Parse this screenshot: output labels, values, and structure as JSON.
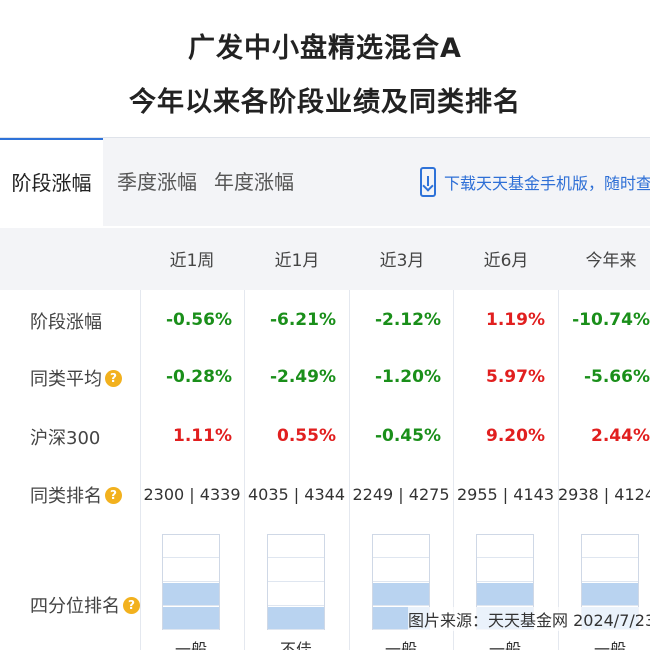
{
  "title": {
    "line1": "广发中小盘精选混合A",
    "line2": "今年以来各阶段业绩及同类排名"
  },
  "tabs": [
    {
      "label": "阶段涨幅",
      "active": true
    },
    {
      "label": "季度涨幅",
      "active": false
    },
    {
      "label": "年度涨幅",
      "active": false
    }
  ],
  "download": {
    "label": "下载天天基金手机版，随时查看"
  },
  "columns": [
    "近1周",
    "近1月",
    "近3月",
    "近6月",
    "今年来"
  ],
  "rows": {
    "stage_change": {
      "label": "阶段涨幅",
      "values": [
        "-0.56%",
        "-6.21%",
        "-2.12%",
        "1.19%",
        "-10.74%"
      ]
    },
    "peer_avg": {
      "label": "同类平均",
      "values": [
        "-0.28%",
        "-2.49%",
        "-1.20%",
        "5.97%",
        "-5.66%"
      ]
    },
    "hs300": {
      "label": "沪深300",
      "values": [
        "1.11%",
        "0.55%",
        "-0.45%",
        "9.20%",
        "2.44%"
      ]
    },
    "peer_rank": {
      "label": "同类排名",
      "values": [
        "2300 | 4339",
        "4035 | 4344",
        "2249 | 4275",
        "2955 | 4143",
        "2938 | 4124"
      ]
    },
    "quartile": {
      "label": "四分位排名",
      "values": [
        "一般",
        "不佳",
        "一般",
        "一般",
        "一般"
      ],
      "filled_quarters": [
        2,
        1,
        2,
        2,
        2
      ]
    }
  },
  "colors": {
    "negative": "#1a8f1a",
    "positive": "#e11f1f",
    "accent": "#2e72d8",
    "help_icon": "#f2b11e"
  },
  "source": "图片来源：天天基金网 2024/7/23"
}
